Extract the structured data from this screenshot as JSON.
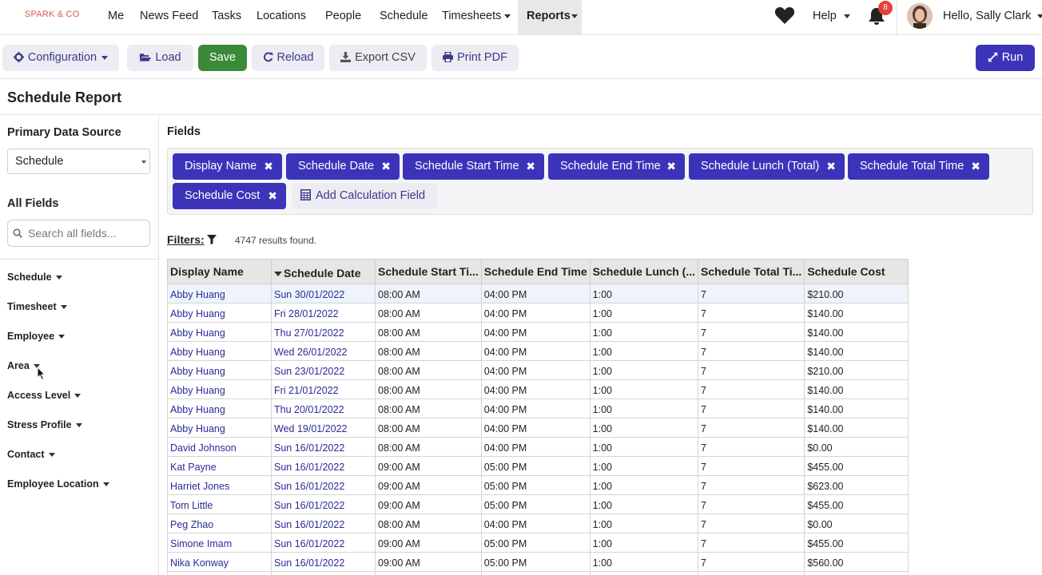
{
  "brand": "SPARK & CO",
  "nav": {
    "me": "Me",
    "news_feed": "News Feed",
    "tasks": "Tasks",
    "locations": "Locations",
    "people": "People",
    "schedule": "Schedule",
    "timesheets": "Timesheets",
    "reports": "Reports",
    "help": "Help",
    "notification_count": "8",
    "greeting": "Hello, Sally Clark"
  },
  "toolbar": {
    "configuration": "Configuration",
    "load": "Load",
    "save": "Save",
    "reload": "Reload",
    "export_csv": "Export CSV",
    "print_pdf": "Print PDF",
    "run": "Run"
  },
  "page_title": "Schedule Report",
  "sidebar": {
    "primary_heading": "Primary Data Source",
    "primary_value": "Schedule",
    "all_fields_heading": "All Fields",
    "search_placeholder": "Search all fields...",
    "categories": [
      "Schedule",
      "Timesheet",
      "Employee",
      "Area",
      "Access Level",
      "Stress Profile",
      "Contact",
      "Employee Location"
    ]
  },
  "fields": {
    "heading": "Fields",
    "chips": [
      "Display Name",
      "Schedule Date",
      "Schedule Start Time",
      "Schedule End Time",
      "Schedule Lunch (Total)",
      "Schedule Total Time",
      "Schedule Cost"
    ],
    "remove_glyph": "✖",
    "add_calc": "Add Calculation Field"
  },
  "filters": {
    "label": "Filters:",
    "results": "4747 results found."
  },
  "table": {
    "headers": [
      "Display Name",
      "Schedule Date",
      "Schedule Start Ti...",
      "Schedule End Time",
      "Schedule Lunch (...",
      "Schedule Total Ti...",
      "Schedule Cost"
    ],
    "rows": [
      [
        "Abby Huang",
        "Sun 30/01/2022",
        "08:00 AM",
        "04:00 PM",
        "1:00",
        "7",
        "$210.00"
      ],
      [
        "Abby Huang",
        "Fri 28/01/2022",
        "08:00 AM",
        "04:00 PM",
        "1:00",
        "7",
        "$140.00"
      ],
      [
        "Abby Huang",
        "Thu 27/01/2022",
        "08:00 AM",
        "04:00 PM",
        "1:00",
        "7",
        "$140.00"
      ],
      [
        "Abby Huang",
        "Wed 26/01/2022",
        "08:00 AM",
        "04:00 PM",
        "1:00",
        "7",
        "$140.00"
      ],
      [
        "Abby Huang",
        "Sun 23/01/2022",
        "08:00 AM",
        "04:00 PM",
        "1:00",
        "7",
        "$210.00"
      ],
      [
        "Abby Huang",
        "Fri 21/01/2022",
        "08:00 AM",
        "04:00 PM",
        "1:00",
        "7",
        "$140.00"
      ],
      [
        "Abby Huang",
        "Thu 20/01/2022",
        "08:00 AM",
        "04:00 PM",
        "1:00",
        "7",
        "$140.00"
      ],
      [
        "Abby Huang",
        "Wed 19/01/2022",
        "08:00 AM",
        "04:00 PM",
        "1:00",
        "7",
        "$140.00"
      ],
      [
        "David Johnson",
        "Sun 16/01/2022",
        "08:00 AM",
        "04:00 PM",
        "1:00",
        "7",
        "$0.00"
      ],
      [
        "Kat Payne",
        "Sun 16/01/2022",
        "09:00 AM",
        "05:00 PM",
        "1:00",
        "7",
        "$455.00"
      ],
      [
        "Harriet Jones",
        "Sun 16/01/2022",
        "09:00 AM",
        "05:00 PM",
        "1:00",
        "7",
        "$623.00"
      ],
      [
        "Tom Little",
        "Sun 16/01/2022",
        "09:00 AM",
        "05:00 PM",
        "1:00",
        "7",
        "$455.00"
      ],
      [
        "Peg Zhao",
        "Sun 16/01/2022",
        "08:00 AM",
        "04:00 PM",
        "1:00",
        "7",
        "$0.00"
      ],
      [
        "Simone Imam",
        "Sun 16/01/2022",
        "09:00 AM",
        "05:00 PM",
        "1:00",
        "7",
        "$455.00"
      ],
      [
        "Nika Konway",
        "Sun 16/01/2022",
        "09:00 AM",
        "05:00 PM",
        "1:00",
        "7",
        "$560.00"
      ],
      [
        "",
        "",
        "",
        "",
        "",
        "",
        ""
      ]
    ]
  },
  "colors": {
    "primary": "#3b34b8",
    "save": "#3a8a3a",
    "brand": "#e0574f",
    "badge": "#e2423b",
    "link": "#2b2b9a"
  },
  "icons": [
    "heart-icon",
    "bell-icon",
    "gear-icon",
    "folder-open-icon",
    "refresh-icon",
    "download-icon",
    "print-icon",
    "expand-icon",
    "search-icon",
    "calculator-icon",
    "filter-icon",
    "close-icon"
  ]
}
